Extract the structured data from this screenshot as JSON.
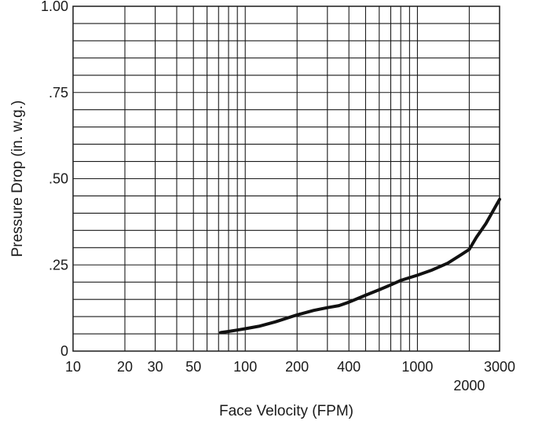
{
  "chart_data": {
    "type": "line",
    "xlabel": "Face Velocity (FPM)",
    "ylabel": "Pressure Drop (in. w.g.)",
    "x_scale": "log",
    "xlim": [
      10,
      3000
    ],
    "ylim": [
      0,
      1.0
    ],
    "grid": true,
    "x_ticks": [
      {
        "value": 10,
        "label": "10"
      },
      {
        "value": 20,
        "label": "20"
      },
      {
        "value": 30,
        "label": "30"
      },
      {
        "value": 50,
        "label": "50"
      },
      {
        "value": 100,
        "label": "100"
      },
      {
        "value": 200,
        "label": "200"
      },
      {
        "value": 400,
        "label": "400"
      },
      {
        "value": 1000,
        "label": "1000"
      },
      {
        "value": 2000,
        "label": "2000"
      },
      {
        "value": 3000,
        "label": "3000"
      }
    ],
    "y_ticks": [
      {
        "value": 0,
        "label": "0"
      },
      {
        "value": 0.25,
        "label": ".25"
      },
      {
        "value": 0.5,
        "label": ".50"
      },
      {
        "value": 0.75,
        "label": ".75"
      },
      {
        "value": 1.0,
        "label": "1.00"
      }
    ],
    "series": [
      {
        "x": [
          72,
          80,
          90,
          100,
          120,
          150,
          200,
          250,
          300,
          350,
          400,
          500,
          600,
          700,
          800,
          1000,
          1200,
          1500,
          1800,
          2000,
          2200,
          2500,
          3000
        ],
        "y": [
          0.054,
          0.057,
          0.061,
          0.065,
          0.072,
          0.085,
          0.105,
          0.118,
          0.126,
          0.132,
          0.142,
          0.162,
          0.178,
          0.192,
          0.205,
          0.22,
          0.234,
          0.255,
          0.28,
          0.295,
          0.33,
          0.37,
          0.44
        ]
      }
    ]
  }
}
